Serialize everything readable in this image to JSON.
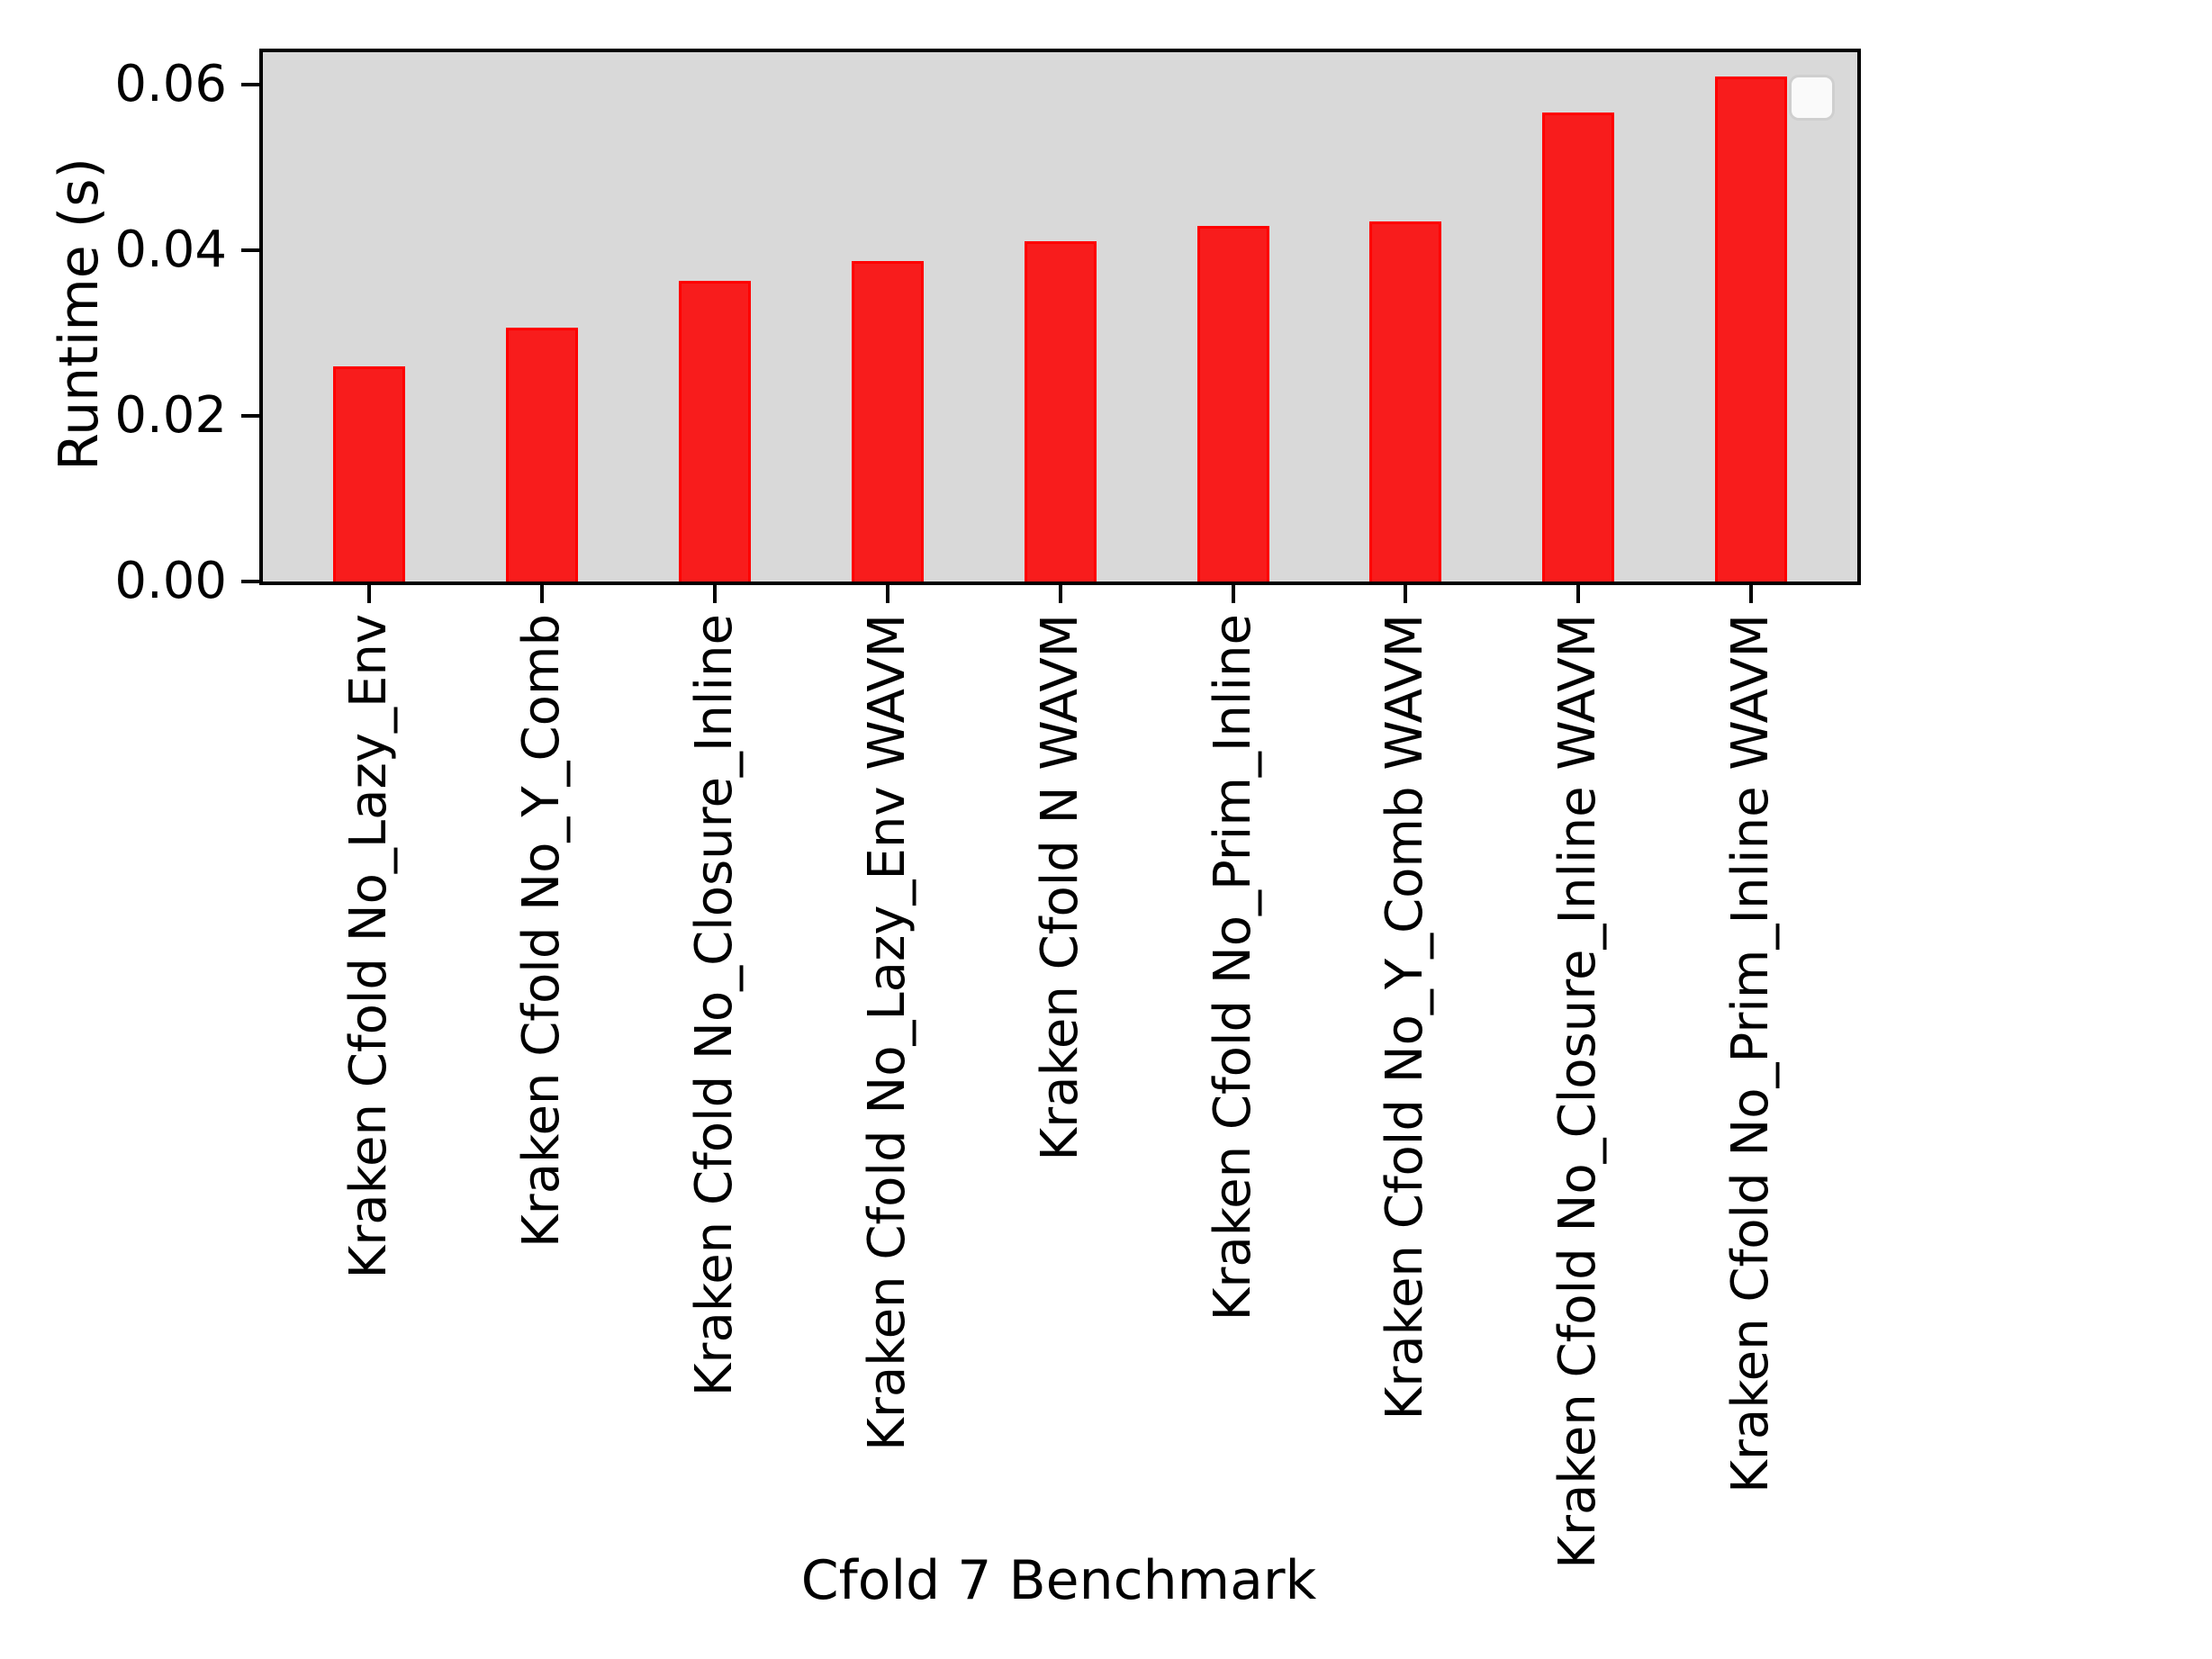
{
  "chart_data": {
    "type": "bar",
    "title": "",
    "xlabel": "Cfold 7 Benchmark",
    "ylabel": "Runtime (s)",
    "categories": [
      "Kraken Cfold No_Lazy_Env",
      "Kraken Cfold No_Y_Comb",
      "Kraken Cfold No_Closure_Inline",
      "Kraken Cfold No_Lazy_Env WAVM",
      "Kraken Cfold N WAVM",
      "Kraken Cfold No_Prim_Inline",
      "Kraken Cfold No_Y_Comb WAVM",
      "Kraken Cfold No_Closure_Inline WAVM",
      "Kraken Cfold No_Prim_Inline WAVM"
    ],
    "values": [
      0.026,
      0.0307,
      0.0363,
      0.0387,
      0.0411,
      0.0429,
      0.0435,
      0.0566,
      0.061
    ],
    "ylim": [
      0,
      0.0639
    ],
    "yticks": [
      {
        "label": "0.00",
        "value": 0.0
      },
      {
        "label": "0.02",
        "value": 0.02
      },
      {
        "label": "0.04",
        "value": 0.04
      },
      {
        "label": "0.06",
        "value": 0.06
      }
    ],
    "grid": false,
    "legend": {
      "visible": true,
      "entries": [],
      "position": "upper right"
    },
    "colors": {
      "bar_fill": "#f81c1c",
      "bar_edge": "#ff0000",
      "plot_background": "#d9d9d9",
      "figure_background": "#ffffff",
      "axis": "#000000",
      "legend_background": "#fafafa",
      "legend_border": "#cfcfcf"
    }
  }
}
